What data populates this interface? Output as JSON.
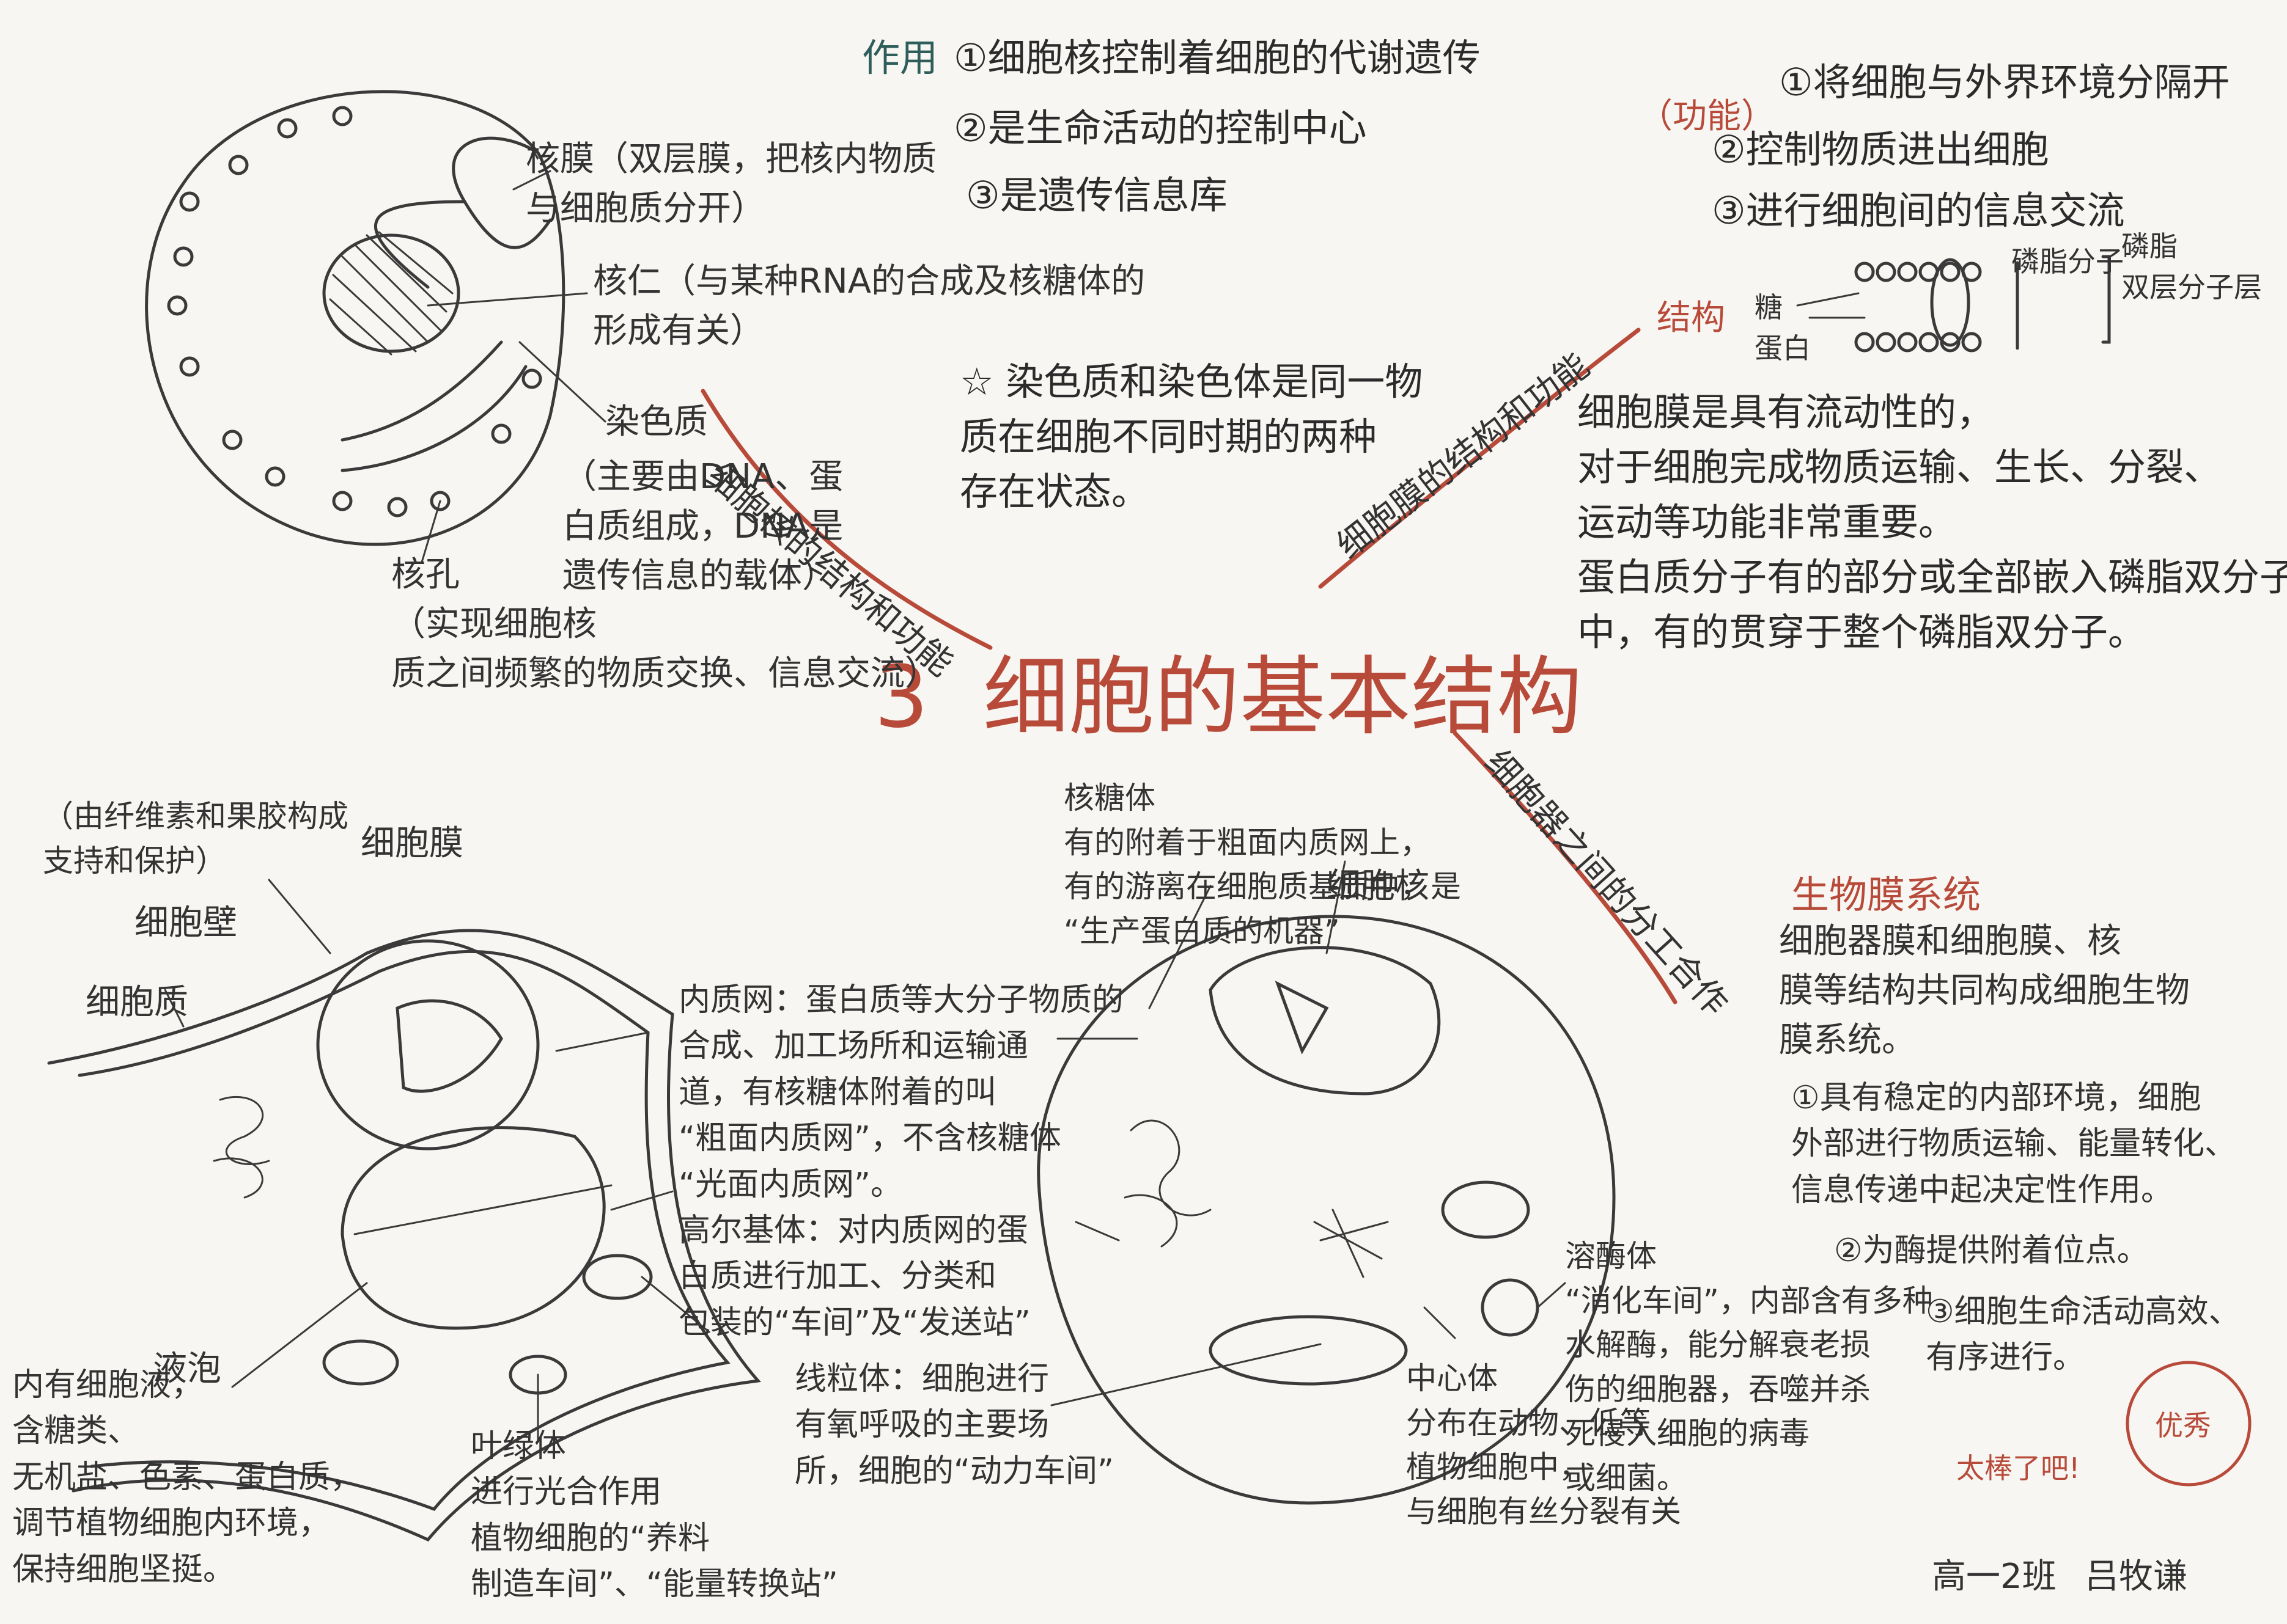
{
  "title": "3  细胞的基本结构",
  "nucleus": {
    "branch": "细胞核的结构和功能",
    "func_head": "作用",
    "functions": [
      "①细胞核控制着细胞的代谢遗传",
      "②是生命活动的控制中心",
      "③是遗传信息库"
    ],
    "envelope": "核膜（双层膜，把核内物质\n与细胞质分开）",
    "nucleolus": "核仁（与某种RNA的合成及核糖体的\n形成有关）",
    "chromatin": "染色质",
    "chromatin_note": "（主要由DNA、蛋\n白质组成，DNA是\n遗传信息的载体）",
    "pore": "核孔\n（实现细胞核\n质之间频繁的物质交换、信息交流）",
    "star_note": "☆ 染色质和染色体是同一物\n质在细胞不同时期的两种\n存在状态。"
  },
  "membrane": {
    "branch": "细胞膜的结构和功能",
    "func_head": "（功能）",
    "functions": [
      "①将细胞与外界环境分隔开",
      "②控制物质进出细胞",
      "③进行细胞间的信息交流"
    ],
    "struct_head": "结构",
    "protein": "糖\n蛋白",
    "phospholipid": "磷脂分子",
    "bilayer": "磷脂\n双层分子层",
    "notes": "细胞膜是具有流动性的，\n对于细胞完成物质运输、生长、分裂、\n运动等功能非常重要。\n蛋白质分子有的部分或全部嵌入磷脂双分子层\n中，有的贯穿于整个磷脂双分子。"
  },
  "organelles": {
    "branch": "细胞器之间的分工合作",
    "wall": "（由纤维素和果胶构成\n支持和保护）",
    "wall_label": "细胞壁",
    "cell_membrane": "细胞膜",
    "cytoplasm": "细胞质",
    "vacuole_label": "液泡",
    "vacuole": "内有细胞液，\n含糖类、\n无机盐、色素、蛋白质，\n调节植物细胞内环境，\n保持细胞坚挺。",
    "er_golgi": "内质网：蛋白质等大分子物质的\n合成、加工场所和运输通\n道，有核糖体附着的叫\n“粗面内质网”，不含核糖体\n“光面内质网”。\n高尔基体：对内质网的蛋\n白质进行加工、分类和\n包装的“车间”及“发送站”",
    "chloroplast": "叶绿体\n进行光合作用\n植物细胞的“养料\n制造车间”、“能量转换站”",
    "mitochondria": "线粒体：细胞进行\n有氧呼吸的主要场\n所，细胞的“动力车间”",
    "ribosome": "核糖体\n有的附着于粗面内质网上，\n有的游离在细胞质基质中，是\n“生产蛋白质的机器”",
    "nucleus_label": "细胞核",
    "lysosome": "溶酶体\n“消化车间”，内部含有多种\n水解酶，能分解衰老损\n伤的细胞器，吞噬并杀\n死侵入细胞的病毒\n或细菌。",
    "centrosome": "中心体\n分布在动物、低等\n植物细胞中，\n与细胞有丝分裂有关"
  },
  "biomembrane": {
    "title": "生物膜系统",
    "text": "细胞器膜和细胞膜、核\n膜等结构共同构成细胞生物\n膜系统。",
    "points": [
      "①具有稳定的内部环境，细胞\n外部进行物质运输、能量转化、\n信息传递中起决定性作用。",
      "②为酶提供附着位点。",
      "③细胞生命活动高效、\n有序进行。"
    ]
  },
  "stamp": {
    "text": "优秀",
    "comment": "太棒了吧!"
  },
  "signature": {
    "class": "高一2班",
    "name": "吕牧谦"
  },
  "colors": {
    "ink": "#2b2b2b",
    "red": "#b84a3a",
    "teal": "#2e5d5a",
    "paper": "#f7f6f2"
  }
}
